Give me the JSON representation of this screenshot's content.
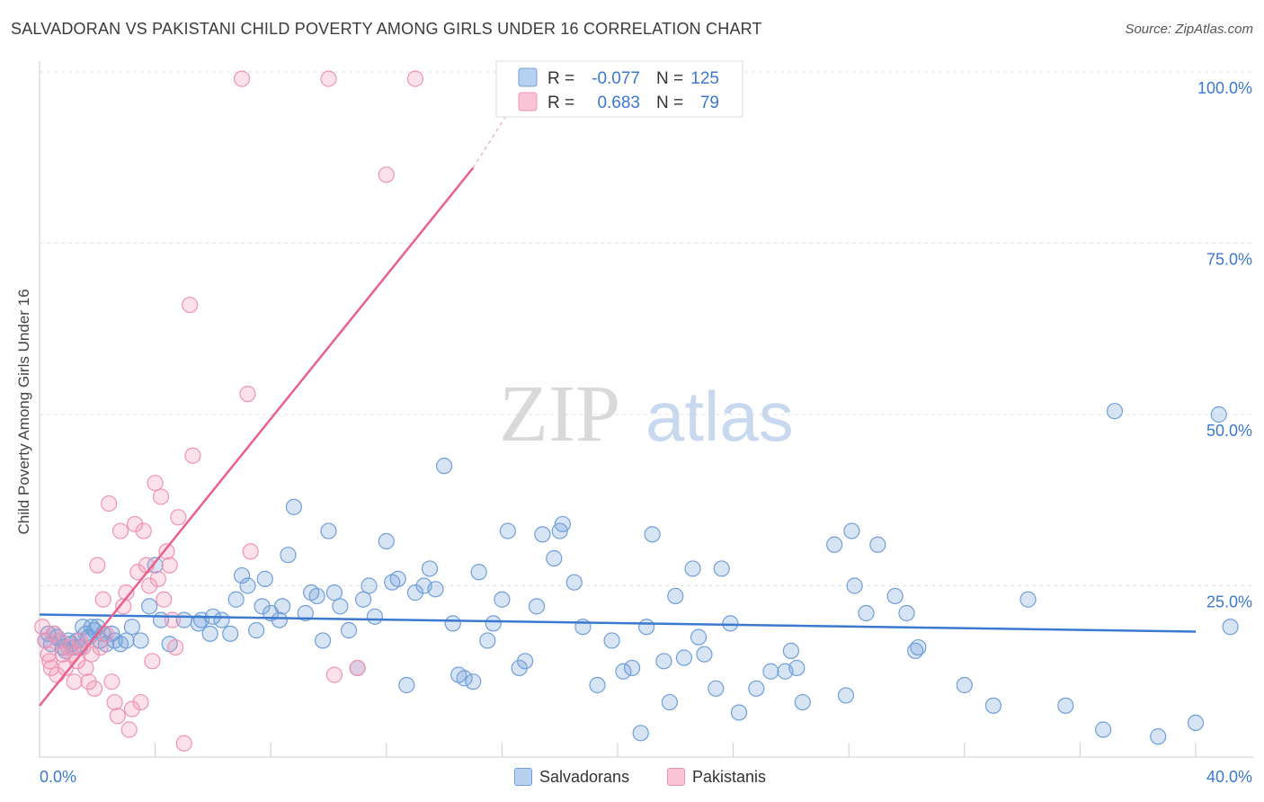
{
  "title": "SALVADORAN VS PAKISTANI CHILD POVERTY AMONG GIRLS UNDER 16 CORRELATION CHART",
  "source": "Source: ZipAtlas.com",
  "watermark": {
    "part1": "ZIP",
    "part2": "atlas"
  },
  "chart_data": {
    "type": "scatter",
    "ylabel": "Child Poverty Among Girls Under 16",
    "xlim": [
      0,
      40
    ],
    "ylim": [
      0,
      100
    ],
    "x_tick_labels": [
      "0.0%",
      "40.0%"
    ],
    "y_tick_labels": [
      "100.0%",
      "75.0%",
      "50.0%",
      "25.0%"
    ],
    "y_tick_values": [
      100,
      75,
      50,
      25
    ],
    "legend": {
      "rows": [
        {
          "r_label": "R =",
          "r_value": "-0.077",
          "n_label": "N =",
          "n_value": "125"
        },
        {
          "r_label": "R =",
          "r_value": "0.683",
          "n_label": "N =",
          "n_value": "79"
        }
      ]
    },
    "series": [
      {
        "name": "Salvadorans",
        "color": "#6f9fd8",
        "line_color": "#3b78cf",
        "trend": {
          "x": [
            0,
            40
          ],
          "y": [
            20.8,
            18.3
          ]
        },
        "points": [
          [
            0.2,
            17
          ],
          [
            0.3,
            18
          ],
          [
            0.4,
            16.5
          ],
          [
            0.5,
            18
          ],
          [
            0.6,
            17.5
          ],
          [
            0.7,
            17
          ],
          [
            0.8,
            16
          ],
          [
            0.9,
            15.5
          ],
          [
            1.0,
            17
          ],
          [
            1.1,
            16.5
          ],
          [
            1.2,
            16
          ],
          [
            1.3,
            17
          ],
          [
            1.4,
            16
          ],
          [
            1.5,
            19
          ],
          [
            1.6,
            18
          ],
          [
            1.7,
            17.5
          ],
          [
            1.8,
            19
          ],
          [
            1.9,
            18.5
          ],
          [
            2.0,
            19
          ],
          [
            2.1,
            17
          ],
          [
            2.2,
            18
          ],
          [
            2.3,
            16.5
          ],
          [
            2.5,
            18
          ],
          [
            2.6,
            17
          ],
          [
            2.8,
            16.5
          ],
          [
            3.0,
            17
          ],
          [
            3.2,
            19
          ],
          [
            3.5,
            17
          ],
          [
            3.8,
            22
          ],
          [
            4.0,
            28
          ],
          [
            4.2,
            20
          ],
          [
            4.5,
            16.5
          ],
          [
            5.0,
            20
          ],
          [
            5.5,
            19.5
          ],
          [
            5.6,
            20
          ],
          [
            5.9,
            18
          ],
          [
            6.0,
            20.5
          ],
          [
            6.3,
            20
          ],
          [
            6.6,
            18
          ],
          [
            6.8,
            23
          ],
          [
            7.0,
            26.5
          ],
          [
            7.2,
            25
          ],
          [
            7.5,
            18.5
          ],
          [
            7.7,
            22
          ],
          [
            7.8,
            26
          ],
          [
            8.0,
            21
          ],
          [
            8.3,
            20
          ],
          [
            8.4,
            22
          ],
          [
            8.6,
            29.5
          ],
          [
            8.8,
            36.5
          ],
          [
            9.2,
            21
          ],
          [
            9.4,
            24
          ],
          [
            9.6,
            23.5
          ],
          [
            9.8,
            17
          ],
          [
            10.0,
            33
          ],
          [
            10.2,
            24
          ],
          [
            10.4,
            22
          ],
          [
            10.7,
            18.5
          ],
          [
            11.0,
            13
          ],
          [
            11.2,
            23
          ],
          [
            11.4,
            25
          ],
          [
            11.6,
            20.5
          ],
          [
            12.0,
            31.5
          ],
          [
            12.2,
            25.5
          ],
          [
            12.4,
            26
          ],
          [
            12.7,
            10.5
          ],
          [
            13.0,
            24
          ],
          [
            13.3,
            25
          ],
          [
            13.5,
            27.5
          ],
          [
            13.7,
            24.5
          ],
          [
            14.0,
            42.5
          ],
          [
            14.3,
            19.5
          ],
          [
            14.5,
            12
          ],
          [
            14.7,
            11.5
          ],
          [
            15.0,
            11
          ],
          [
            15.2,
            27
          ],
          [
            15.5,
            17
          ],
          [
            15.7,
            19.5
          ],
          [
            16.0,
            23
          ],
          [
            16.2,
            33
          ],
          [
            16.6,
            13
          ],
          [
            16.8,
            14
          ],
          [
            17.2,
            22
          ],
          [
            17.4,
            32.5
          ],
          [
            17.8,
            29
          ],
          [
            18.0,
            33
          ],
          [
            18.1,
            34
          ],
          [
            18.5,
            25.5
          ],
          [
            18.8,
            19
          ],
          [
            19.3,
            10.5
          ],
          [
            19.8,
            17
          ],
          [
            20.2,
            12.5
          ],
          [
            20.5,
            13
          ],
          [
            20.8,
            3.5
          ],
          [
            21.0,
            19
          ],
          [
            21.2,
            32.5
          ],
          [
            21.6,
            14
          ],
          [
            21.8,
            8
          ],
          [
            22.0,
            23.5
          ],
          [
            22.3,
            14.5
          ],
          [
            22.6,
            27.5
          ],
          [
            22.8,
            17.5
          ],
          [
            23.0,
            15
          ],
          [
            23.4,
            10
          ],
          [
            23.6,
            27.5
          ],
          [
            23.9,
            19.5
          ],
          [
            24.2,
            6.5
          ],
          [
            24.8,
            10
          ],
          [
            25.3,
            12.5
          ],
          [
            25.8,
            12.5
          ],
          [
            26.0,
            15.5
          ],
          [
            26.2,
            13
          ],
          [
            26.4,
            8
          ],
          [
            27.5,
            31
          ],
          [
            27.9,
            9
          ],
          [
            28.1,
            33
          ],
          [
            28.2,
            25
          ],
          [
            28.6,
            21
          ],
          [
            29.0,
            31
          ],
          [
            29.6,
            23.5
          ],
          [
            30.0,
            21
          ],
          [
            30.3,
            15.5
          ],
          [
            30.4,
            16
          ],
          [
            32.0,
            10.5
          ],
          [
            33.0,
            7.5
          ],
          [
            34.2,
            23
          ],
          [
            35.5,
            7.5
          ],
          [
            36.8,
            4
          ],
          [
            37.2,
            50.5
          ],
          [
            38.7,
            3
          ],
          [
            40.0,
            5
          ],
          [
            40.8,
            50
          ],
          [
            41.2,
            19
          ]
        ]
      },
      {
        "name": "Pakistanis",
        "color": "#f093b3",
        "line_color": "#e8608c",
        "trend": {
          "x": [
            0,
            15
          ],
          "y": [
            7.5,
            86
          ]
        },
        "trend_dashed_to": {
          "x": 16.2,
          "y": 94
        },
        "points": [
          [
            0.1,
            19
          ],
          [
            0.2,
            17
          ],
          [
            0.3,
            15
          ],
          [
            0.35,
            14
          ],
          [
            0.4,
            13
          ],
          [
            0.5,
            18
          ],
          [
            0.6,
            12
          ],
          [
            0.7,
            17
          ],
          [
            0.8,
            15
          ],
          [
            0.9,
            13
          ],
          [
            1.0,
            16
          ],
          [
            1.1,
            15
          ],
          [
            1.2,
            11
          ],
          [
            1.3,
            14
          ],
          [
            1.4,
            17
          ],
          [
            1.5,
            16
          ],
          [
            1.6,
            13
          ],
          [
            1.7,
            11
          ],
          [
            1.8,
            15
          ],
          [
            1.9,
            10
          ],
          [
            2.0,
            28
          ],
          [
            2.1,
            16
          ],
          [
            2.2,
            23
          ],
          [
            2.3,
            18
          ],
          [
            2.4,
            37
          ],
          [
            2.5,
            11
          ],
          [
            2.6,
            8
          ],
          [
            2.7,
            6
          ],
          [
            2.8,
            33
          ],
          [
            2.9,
            22
          ],
          [
            3.0,
            24
          ],
          [
            3.1,
            4
          ],
          [
            3.2,
            7
          ],
          [
            3.3,
            34
          ],
          [
            3.4,
            27
          ],
          [
            3.5,
            8
          ],
          [
            3.6,
            33
          ],
          [
            3.7,
            28
          ],
          [
            3.8,
            25
          ],
          [
            3.9,
            14
          ],
          [
            4.0,
            40
          ],
          [
            4.1,
            26
          ],
          [
            4.2,
            38
          ],
          [
            4.3,
            23
          ],
          [
            4.4,
            30
          ],
          [
            4.5,
            28
          ],
          [
            4.6,
            20
          ],
          [
            4.7,
            16
          ],
          [
            4.8,
            35
          ],
          [
            5.0,
            2
          ],
          [
            5.2,
            66
          ],
          [
            5.3,
            44
          ],
          [
            7.0,
            99
          ],
          [
            7.2,
            53
          ],
          [
            7.3,
            30
          ],
          [
            10.0,
            99
          ],
          [
            10.2,
            12
          ],
          [
            11.0,
            13
          ],
          [
            12.0,
            85
          ],
          [
            13.0,
            99
          ]
        ]
      }
    ]
  },
  "legend_bottom": [
    {
      "label": "Salvadorans",
      "fill": "#b9d1f0",
      "stroke": "#6f9fd8"
    },
    {
      "label": "Pakistanis",
      "fill": "#f8c4d6",
      "stroke": "#f093b3"
    }
  ]
}
